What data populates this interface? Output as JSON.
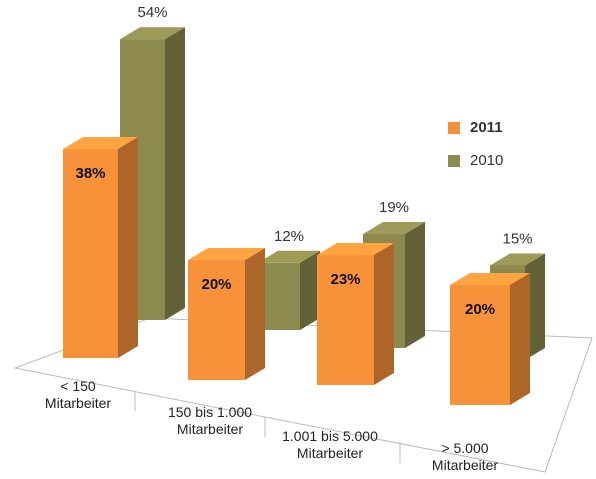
{
  "chart_data": {
    "type": "bar3d",
    "categories": [
      "< 150 Mitarbeiter",
      "150 bis 1.000 Mitarbeiter",
      "1.001 bis 5.000 Mitarbeiter",
      "> 5.000 Mitarbeiter"
    ],
    "series": [
      {
        "name": "2011",
        "color": "#f7923a",
        "values": [
          38,
          20,
          23,
          20
        ],
        "value_labels": [
          "38%",
          "20%",
          "23%",
          "20%"
        ]
      },
      {
        "name": "2010",
        "color": "#8c8a4e",
        "values": [
          54,
          12,
          19,
          15
        ],
        "value_labels": [
          "54%",
          "12%",
          "19%",
          "15%"
        ]
      }
    ],
    "legend": "right"
  }
}
